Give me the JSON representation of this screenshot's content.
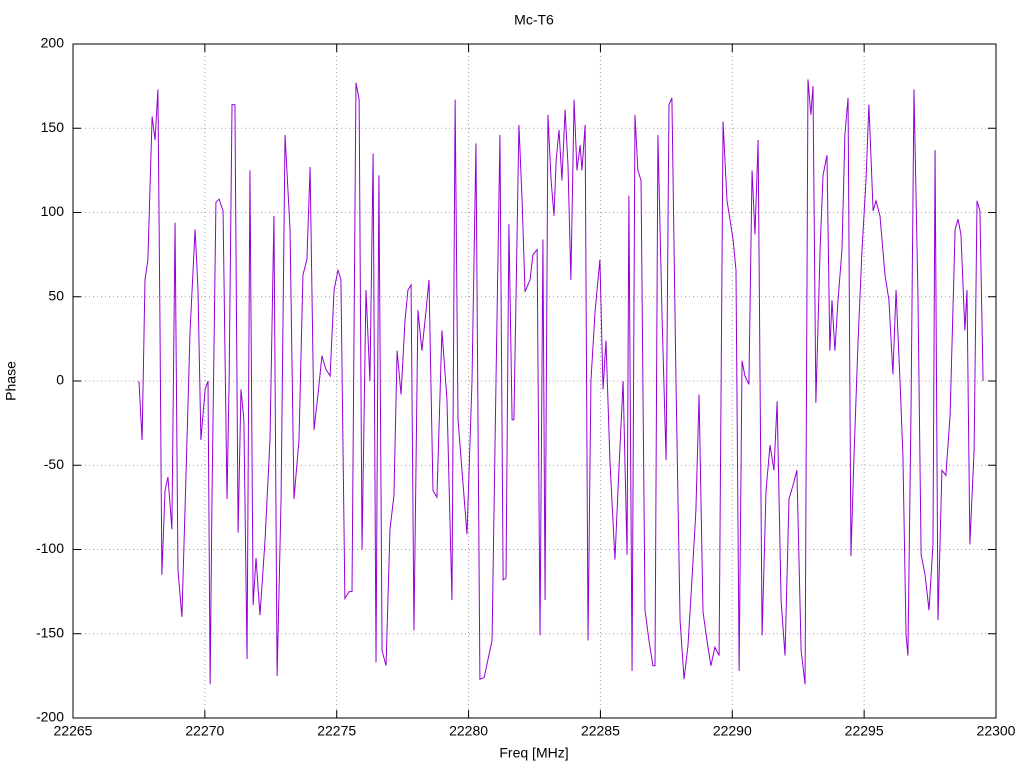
{
  "chart_data": {
    "type": "line",
    "title": "Mc-T6",
    "x_label": "Freq [MHz]",
    "y_label": "Phase",
    "xlim": [
      22265,
      22300
    ],
    "xticks": [
      22265,
      22270,
      22275,
      22280,
      22285,
      22290,
      22295,
      22300
    ],
    "ylim": [
      -200,
      200
    ],
    "yticks": [
      -200,
      -150,
      -100,
      -50,
      0,
      50,
      100,
      150,
      200
    ],
    "grid": true,
    "x": [
      22267.5,
      22267.62,
      22267.73,
      22267.84,
      22268.0,
      22268.11,
      22268.22,
      22268.3,
      22268.37,
      22268.49,
      22268.6,
      22268.75,
      22268.87,
      22268.98,
      22269.13,
      22269.29,
      22269.44,
      22269.63,
      22269.74,
      22269.85,
      22270.01,
      22270.12,
      22270.2,
      22270.27,
      22270.42,
      22270.54,
      22270.69,
      22270.84,
      22270.92,
      22271.03,
      22271.14,
      22271.26,
      22271.37,
      22271.48,
      22271.6,
      22271.71,
      22271.83,
      22271.94,
      22272.09,
      22272.28,
      22272.47,
      22272.62,
      22272.74,
      22272.89,
      22273.04,
      22273.23,
      22273.38,
      22273.57,
      22273.72,
      22273.87,
      22273.99,
      22274.14,
      22274.29,
      22274.44,
      22274.59,
      22274.75,
      22274.9,
      22275.05,
      22275.16,
      22275.31,
      22275.47,
      22275.58,
      22275.73,
      22275.85,
      22275.96,
      22276.11,
      22276.26,
      22276.38,
      22276.49,
      22276.6,
      22276.72,
      22276.87,
      22277.02,
      22277.17,
      22277.29,
      22277.44,
      22277.59,
      22277.7,
      22277.82,
      22277.93,
      22278.08,
      22278.23,
      22278.39,
      22278.5,
      22278.65,
      22278.8,
      22278.99,
      22279.18,
      22279.37,
      22279.49,
      22279.6,
      22279.75,
      22279.94,
      22280.13,
      22280.28,
      22280.43,
      22280.59,
      22280.74,
      22280.89,
      22281.04,
      22281.19,
      22281.31,
      22281.42,
      22281.53,
      22281.65,
      22281.72,
      22281.91,
      22282.03,
      22282.14,
      22282.33,
      22282.44,
      22282.6,
      22282.71,
      22282.82,
      22282.9,
      22283.01,
      22283.13,
      22283.24,
      22283.32,
      22283.43,
      22283.54,
      22283.66,
      22283.77,
      22283.88,
      22284.0,
      22284.11,
      22284.23,
      22284.3,
      22284.42,
      22284.53,
      22284.64,
      22284.8,
      22284.98,
      22285.1,
      22285.21,
      22285.36,
      22285.55,
      22285.7,
      22285.86,
      22286.01,
      22286.08,
      22286.2,
      22286.31,
      22286.42,
      22286.54,
      22286.69,
      22286.84,
      22286.99,
      22287.07,
      22287.18,
      22287.34,
      22287.49,
      22287.6,
      22287.71,
      22287.87,
      22288.02,
      22288.17,
      22288.32,
      22288.47,
      22288.62,
      22288.74,
      22288.89,
      22289.04,
      22289.19,
      22289.34,
      22289.5,
      22289.65,
      22289.8,
      22290.03,
      22290.14,
      22290.26,
      22290.37,
      22290.48,
      22290.63,
      22290.75,
      22290.86,
      22290.98,
      22291.13,
      22291.28,
      22291.43,
      22291.58,
      22291.7,
      22291.85,
      22292.0,
      22292.15,
      22292.3,
      22292.45,
      22292.61,
      22292.76,
      22292.87,
      22292.98,
      22293.06,
      22293.17,
      22293.33,
      22293.44,
      22293.59,
      22293.7,
      22293.78,
      22293.89,
      22294.01,
      22294.16,
      22294.27,
      22294.39,
      22294.5,
      22294.61,
      22294.77,
      22294.92,
      22295.07,
      22295.18,
      22295.34,
      22295.45,
      22295.6,
      22295.79,
      22295.94,
      22296.09,
      22296.21,
      22296.36,
      22296.47,
      22296.59,
      22296.66,
      22296.78,
      22296.89,
      22297.04,
      22297.16,
      22297.31,
      22297.46,
      22297.61,
      22297.69,
      22297.8,
      22297.95,
      22298.1,
      22298.26,
      22298.45,
      22298.56,
      22298.67,
      22298.82,
      22298.9,
      22299.01,
      22299.17,
      22299.28,
      22299.39,
      22299.51
    ],
    "series": [
      {
        "name": "Phase",
        "color": "#9400d3",
        "values": [
          0,
          -35,
          60,
          72,
          157,
          143,
          173,
          30,
          -115,
          -65,
          -57,
          -88,
          94,
          -112,
          -140,
          -53,
          30,
          90,
          54,
          -35,
          -5,
          0,
          -180,
          -70,
          106,
          108,
          101,
          -70,
          0,
          164,
          164,
          -90,
          -5,
          -23,
          -165,
          125,
          -133,
          -105,
          -139,
          -95,
          -35,
          98,
          -175,
          -70,
          146,
          90,
          -70,
          -35,
          63,
          72,
          127,
          -29,
          -8,
          15,
          7,
          3,
          54,
          66,
          60,
          -129,
          -125,
          -125,
          177,
          167,
          -100,
          54,
          0,
          135,
          -167,
          122,
          -160,
          -169,
          -88,
          -68,
          18,
          -8,
          36,
          54,
          57,
          -148,
          42,
          18,
          42,
          60,
          -65,
          -69,
          30,
          -11,
          -130,
          167,
          -23,
          -53,
          -91,
          0,
          141,
          -177,
          -176,
          -165,
          -154,
          0,
          146,
          -118,
          -117,
          93,
          -23,
          -23,
          152,
          107,
          53,
          60,
          75,
          78,
          -151,
          84,
          -130,
          158,
          119,
          98,
          131,
          149,
          119,
          161,
          128,
          60,
          167,
          125,
          140,
          125,
          152,
          -154,
          0,
          42,
          72,
          -5,
          24,
          -47,
          -106,
          -53,
          0,
          -103,
          110,
          -172,
          158,
          125,
          119,
          -136,
          -154,
          -169,
          -169,
          146,
          36,
          -47,
          164,
          168,
          -5,
          -142,
          -177,
          -157,
          -118,
          -77,
          -8,
          -137,
          -154,
          -169,
          -158,
          -163,
          154,
          107,
          84,
          66,
          -172,
          12,
          3,
          -2,
          125,
          87,
          143,
          -151,
          -65,
          -38,
          -53,
          -12,
          -130,
          -163,
          -70,
          -62,
          -53,
          -160,
          -180,
          179,
          158,
          175,
          -13,
          78,
          122,
          134,
          18,
          48,
          18,
          48,
          78,
          146,
          168,
          -104,
          -47,
          24,
          78,
          119,
          164,
          101,
          107,
          98,
          63,
          48,
          4,
          54,
          0,
          -44,
          -151,
          -163,
          -14,
          173,
          51,
          -103,
          -115,
          -136,
          -97,
          137,
          -142,
          -53,
          -56,
          -20,
          90,
          96,
          87,
          30,
          54,
          -97,
          -41,
          107,
          101,
          0
        ]
      }
    ]
  }
}
